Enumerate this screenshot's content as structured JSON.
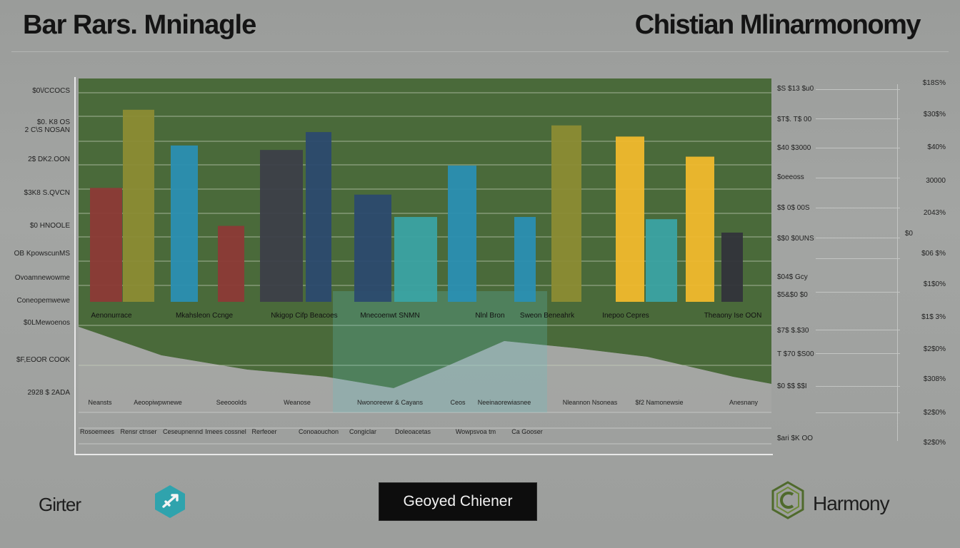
{
  "header": {
    "title_left": "Bar Rars. Mninagle",
    "title_right": "Chistian Mlinarmonomy"
  },
  "left_axis_ticks": [
    "$0\\/CCOCS",
    "$0. K8 OS",
    "2 C\\S NOSAN",
    "2$ DK2.OON",
    "$3K8 S.QVCN",
    "$0 HNOOLE",
    "OB KpowscunMS",
    "Ovoamnewowme",
    "Coneopemwewe",
    "$0LMewoenos",
    "$F,EOOR COOK",
    "2928 $ 2ADA"
  ],
  "right_axis_1_ticks": [
    "$S $13 $u0",
    "$T$. T$ 00",
    "$40 $3000",
    "$oeeoss",
    "$$ 0$ 00S",
    "$$0 $0UNS",
    "$04$ Gcy",
    "$5&$0 $0",
    "$7$ $.$30",
    "T $70 $S00",
    "$0 $$ $$I",
    "$ari $K OO"
  ],
  "right_axis_2_ticks": [
    "$18S%",
    "$30$%",
    "$40%",
    "30000",
    "2043%",
    "$0",
    "$06 $%",
    "$1$0%",
    "$1$ 3%",
    "$2$0%",
    "$308%",
    "$2$0%",
    "$2$0%"
  ],
  "footer": {
    "left_text": "Girter",
    "button_label": "Geoyed Chiener",
    "right_text": "Harmony"
  },
  "colors": {
    "plot_background": "#4a6a3a",
    "red": "#8c3a36",
    "olive": "#8b8c33",
    "blue": "#2a8fb2",
    "dark_slate": "#3c3f48",
    "navy": "#2b4a6e",
    "teal": "#3aa3a3",
    "yellow": "#f0b92c",
    "charcoal": "#32343a"
  },
  "chart_data": {
    "type": "bar",
    "title": "Bar Rars. Mninagle",
    "ylim": [
      0,
      100
    ],
    "grid": true,
    "categories": [
      "Aenonurrace",
      "Mkahsleon Ccnge",
      "Nkigop Cifp Beacoes",
      "Mnecoenwt SNMN",
      "Nlnl Bron",
      "Sweon Beneahrk",
      "Inepoo Cepres",
      "Theaony Ise OON"
    ],
    "bars": [
      {
        "label": "Aenonurrace",
        "value": 51,
        "color": "red"
      },
      {
        "label": "Aenonurrace",
        "value": 86,
        "color": "olive"
      },
      {
        "label": "Mkahsleon Ccnge",
        "value": 70,
        "color": "blue"
      },
      {
        "label": "Mkahsleon Ccnge",
        "value": 34,
        "color": "red"
      },
      {
        "label": "Nkigop Cifp Beacoes",
        "value": 68,
        "color": "dark_slate"
      },
      {
        "label": "Nkigop Cifp Beacoes",
        "value": 76,
        "color": "navy"
      },
      {
        "label": "Mnecoenwt SNMN",
        "value": 48,
        "color": "navy"
      },
      {
        "label": "Mnecoenwt SNMN",
        "value": 38,
        "color": "teal"
      },
      {
        "label": "Nlnl Bron",
        "value": 61,
        "color": "blue"
      },
      {
        "label": "Nlnl Bron",
        "value": 38,
        "color": "blue"
      },
      {
        "label": "Sweon Beneahrk",
        "value": 79,
        "color": "olive"
      },
      {
        "label": "Inepoo Cepres",
        "value": 74,
        "color": "yellow"
      },
      {
        "label": "Inepoo Cepres",
        "value": 37,
        "color": "teal"
      },
      {
        "label": "Theaony Ise OON",
        "value": 65,
        "color": "yellow"
      },
      {
        "label": "Theaony Ise OON",
        "value": 31,
        "color": "charcoal"
      }
    ],
    "secondary_labels": [
      "Neansts",
      "Aeoopiwpwnewe",
      "Seeooolds",
      "Weanose",
      "Nwonoreewr & Cayans",
      "Ceos",
      "Neeinaorewiasnee",
      "Nleannon Nsoneas",
      "$f2 Namonewsie",
      "Anesnany"
    ],
    "tertiary_labels": [
      "Rosoemees",
      "Rensr ctnser",
      "Ceseupnennd",
      "Imees cossnel",
      "Rerfeoer",
      "Conoaouchon",
      "Congiclar",
      "Doleoacetas",
      "Wowpsvoa tm",
      "Ca Gooser"
    ]
  }
}
